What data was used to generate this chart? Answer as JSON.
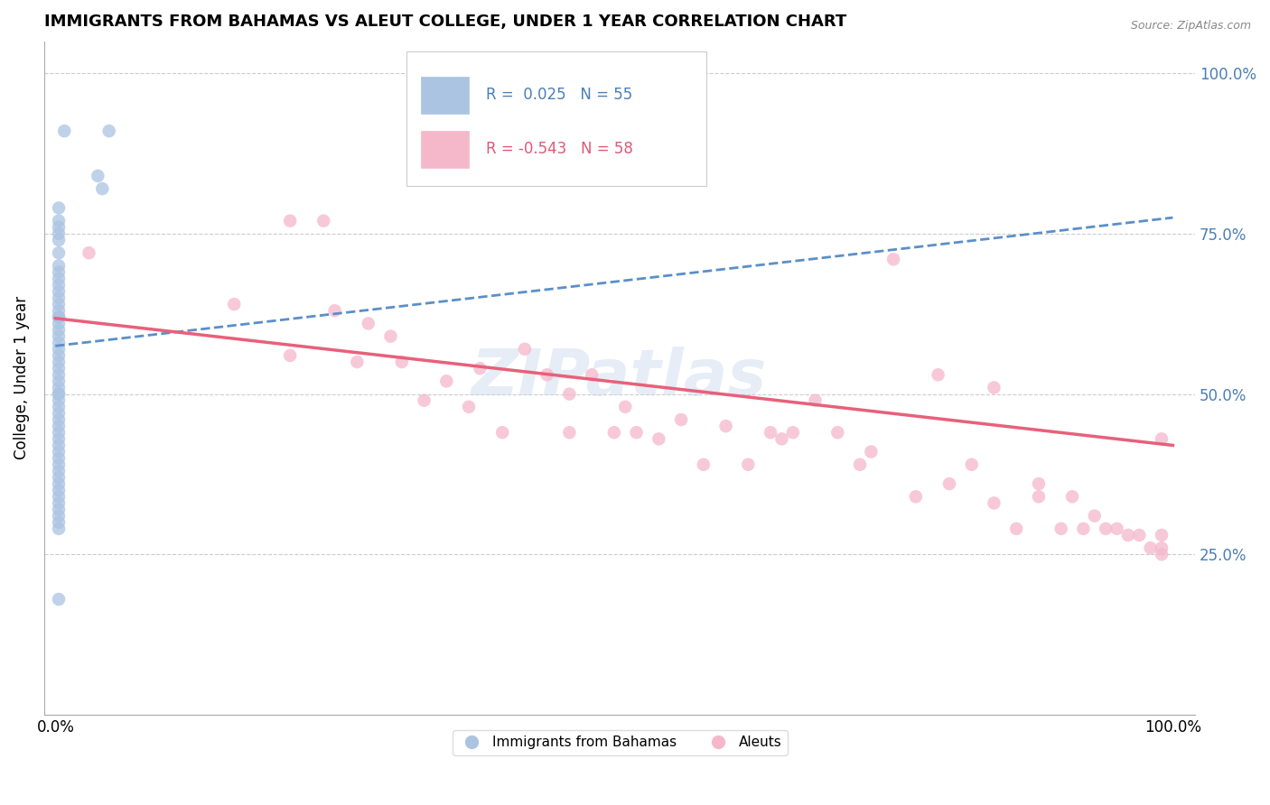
{
  "title": "IMMIGRANTS FROM BAHAMAS VS ALEUT COLLEGE, UNDER 1 YEAR CORRELATION CHART",
  "source": "Source: ZipAtlas.com",
  "ylabel": "College, Under 1 year",
  "legend_blue_r": "R =  0.025",
  "legend_blue_n": "N = 55",
  "legend_pink_r": "R = -0.543",
  "legend_pink_n": "N = 58",
  "legend_blue_label": "Immigrants from Bahamas",
  "legend_pink_label": "Aleuts",
  "blue_color": "#aac4e2",
  "pink_color": "#f5b8cb",
  "blue_line_color": "#5b8fc9",
  "pink_line_color": "#e8607a",
  "watermark_text": "ZIPatlas",
  "blue_scatter_x": [
    0.008,
    0.048,
    0.038,
    0.042,
    0.003,
    0.003,
    0.003,
    0.003,
    0.003,
    0.003,
    0.003,
    0.003,
    0.003,
    0.003,
    0.003,
    0.003,
    0.003,
    0.003,
    0.003,
    0.003,
    0.003,
    0.003,
    0.003,
    0.003,
    0.003,
    0.003,
    0.003,
    0.003,
    0.003,
    0.003,
    0.003,
    0.003,
    0.003,
    0.003,
    0.003,
    0.003,
    0.003,
    0.003,
    0.003,
    0.003,
    0.003,
    0.003,
    0.003,
    0.003,
    0.003,
    0.003,
    0.003,
    0.003,
    0.003,
    0.003,
    0.003,
    0.003,
    0.003,
    0.003,
    0.003
  ],
  "blue_scatter_y": [
    0.91,
    0.91,
    0.84,
    0.82,
    0.79,
    0.77,
    0.76,
    0.75,
    0.74,
    0.72,
    0.7,
    0.69,
    0.68,
    0.67,
    0.66,
    0.65,
    0.64,
    0.63,
    0.62,
    0.61,
    0.6,
    0.59,
    0.58,
    0.57,
    0.56,
    0.55,
    0.54,
    0.53,
    0.52,
    0.51,
    0.5,
    0.5,
    0.49,
    0.48,
    0.47,
    0.46,
    0.45,
    0.44,
    0.43,
    0.42,
    0.41,
    0.4,
    0.39,
    0.38,
    0.37,
    0.36,
    0.35,
    0.34,
    0.33,
    0.32,
    0.31,
    0.3,
    0.29,
    0.18,
    0.62
  ],
  "pink_scatter_x": [
    0.03,
    0.16,
    0.21,
    0.21,
    0.24,
    0.25,
    0.27,
    0.28,
    0.3,
    0.31,
    0.33,
    0.35,
    0.37,
    0.38,
    0.4,
    0.42,
    0.44,
    0.46,
    0.46,
    0.48,
    0.5,
    0.51,
    0.52,
    0.54,
    0.56,
    0.58,
    0.6,
    0.62,
    0.64,
    0.65,
    0.66,
    0.68,
    0.7,
    0.72,
    0.73,
    0.75,
    0.77,
    0.79,
    0.8,
    0.82,
    0.84,
    0.84,
    0.86,
    0.88,
    0.88,
    0.9,
    0.91,
    0.92,
    0.93,
    0.94,
    0.95,
    0.96,
    0.97,
    0.98,
    0.99,
    0.99,
    0.99,
    0.99
  ],
  "pink_scatter_y": [
    0.72,
    0.64,
    0.56,
    0.77,
    0.77,
    0.63,
    0.55,
    0.61,
    0.59,
    0.55,
    0.49,
    0.52,
    0.48,
    0.54,
    0.44,
    0.57,
    0.53,
    0.5,
    0.44,
    0.53,
    0.44,
    0.48,
    0.44,
    0.43,
    0.46,
    0.39,
    0.45,
    0.39,
    0.44,
    0.43,
    0.44,
    0.49,
    0.44,
    0.39,
    0.41,
    0.71,
    0.34,
    0.53,
    0.36,
    0.39,
    0.51,
    0.33,
    0.29,
    0.36,
    0.34,
    0.29,
    0.34,
    0.29,
    0.31,
    0.29,
    0.29,
    0.28,
    0.28,
    0.26,
    0.28,
    0.26,
    0.25,
    0.43
  ],
  "blue_line_x0": 0.0,
  "blue_line_x1": 1.0,
  "blue_line_y0": 0.575,
  "blue_line_y1": 0.775,
  "pink_line_x0": 0.0,
  "pink_line_x1": 1.0,
  "pink_line_y0": 0.618,
  "pink_line_y1": 0.42,
  "xlim": [
    -0.01,
    1.02
  ],
  "ylim": [
    0.0,
    1.05
  ],
  "yticks": [
    0.0,
    0.25,
    0.5,
    0.75,
    1.0
  ],
  "right_ytick_labels": [
    "25.0%",
    "50.0%",
    "75.0%",
    "100.0%"
  ],
  "right_ytick_vals": [
    0.25,
    0.5,
    0.75,
    1.0
  ],
  "xtick_labels": [
    "0.0%",
    "100.0%"
  ],
  "xtick_vals": [
    0.0,
    1.0
  ]
}
